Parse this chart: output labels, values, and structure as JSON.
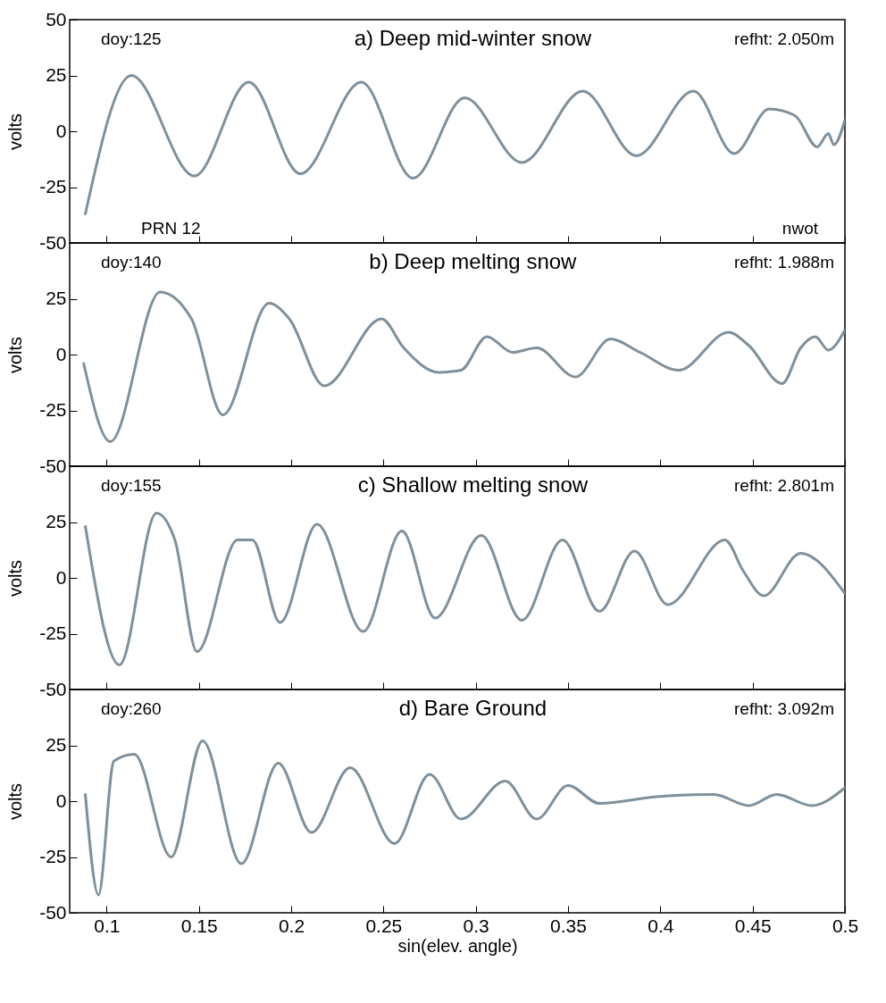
{
  "chart_data": [
    {
      "type": "line",
      "title": "a) Deep mid-winter snow",
      "ylabel": "volts",
      "annotations": [
        "doy:125",
        "refht: 2.050m",
        "PRN 12",
        "nwot"
      ],
      "xlim": [
        0.08,
        0.5
      ],
      "xticks": [
        0.1,
        0.15,
        0.2,
        0.25,
        0.3,
        0.35,
        0.4,
        0.45,
        0.5
      ],
      "ylim": [
        -50,
        50
      ],
      "yticks": [
        -50,
        -25,
        0,
        25,
        50
      ],
      "tick_labels": "y",
      "grid": false,
      "series": [
        {
          "color": "#7f909c",
          "x": [
            0.0885,
            0.1134,
            0.1476,
            0.177,
            0.205,
            0.238,
            0.266,
            0.294,
            0.325,
            0.358,
            0.387,
            0.418,
            0.44,
            0.459,
            0.473,
            0.485,
            0.491,
            0.494,
            0.5
          ],
          "values": [
            -37,
            25,
            -20,
            22,
            -19,
            22,
            -21,
            15,
            -14,
            18,
            -11,
            18,
            -10,
            10,
            7,
            -7,
            -1,
            -6,
            5
          ]
        }
      ]
    },
    {
      "type": "line",
      "title": "b) Deep melting snow",
      "ylabel": "volts",
      "annotations": [
        "doy:140",
        "refht: 1.988m"
      ],
      "xlim": [
        0.08,
        0.5
      ],
      "xticks": [
        0.1,
        0.15,
        0.2,
        0.25,
        0.3,
        0.35,
        0.4,
        0.45,
        0.5
      ],
      "ylim": [
        -50,
        50
      ],
      "yticks": [
        -50,
        -25,
        0,
        25
      ],
      "tick_labels": "y",
      "grid": false,
      "series": [
        {
          "color": "#7f909c",
          "x": [
            0.0876,
            0.102,
            0.129,
            0.146,
            0.163,
            0.188,
            0.199,
            0.218,
            0.249,
            0.261,
            0.28,
            0.292,
            0.306,
            0.32,
            0.333,
            0.354,
            0.373,
            0.389,
            0.41,
            0.437,
            0.448,
            0.466,
            0.476,
            0.484,
            0.491,
            0.5
          ],
          "values": [
            -4,
            -39,
            28,
            16,
            -27,
            23,
            16,
            -14,
            16,
            3,
            -8,
            -7,
            8,
            1,
            3,
            -10,
            7,
            1,
            -7,
            10,
            4,
            -13,
            3,
            8,
            2,
            11
          ]
        }
      ]
    },
    {
      "type": "line",
      "title": "c) Shallow melting snow",
      "ylabel": "volts",
      "annotations": [
        "doy:155",
        "refht: 2.801m"
      ],
      "xlim": [
        0.08,
        0.5
      ],
      "xticks": [
        0.1,
        0.15,
        0.2,
        0.25,
        0.3,
        0.35,
        0.4,
        0.45,
        0.5
      ],
      "ylim": [
        -50,
        50
      ],
      "yticks": [
        -50,
        -25,
        0,
        25
      ],
      "tick_labels": "y",
      "grid": false,
      "series": [
        {
          "color": "#7f909c",
          "x": [
            0.0885,
            0.107,
            0.127,
            0.137,
            0.149,
            0.171,
            0.179,
            0.194,
            0.214,
            0.239,
            0.26,
            0.278,
            0.303,
            0.325,
            0.347,
            0.367,
            0.386,
            0.404,
            0.435,
            0.445,
            0.456,
            0.476,
            0.5
          ],
          "values": [
            23,
            -39,
            29,
            17,
            -33,
            17,
            17,
            -20,
            24,
            -24,
            21,
            -18,
            19,
            -19,
            17,
            -15,
            12,
            -12,
            17,
            3,
            -8,
            11,
            -7
          ]
        }
      ]
    },
    {
      "type": "line",
      "title": "d) Bare Ground",
      "xlabel": "sin(elev. angle)",
      "ylabel": "volts",
      "annotations": [
        "doy:260",
        "refht: 3.092m"
      ],
      "xlim": [
        0.08,
        0.5
      ],
      "xticks": [
        0.1,
        0.15,
        0.2,
        0.25,
        0.3,
        0.35,
        0.4,
        0.45,
        0.5
      ],
      "ylim": [
        -50,
        50
      ],
      "yticks": [
        -50,
        -25,
        0,
        25
      ],
      "grid": false,
      "series": [
        {
          "color": "#7f909c",
          "x": [
            0.0885,
            0.0956,
            0.104,
            0.115,
            0.135,
            0.152,
            0.173,
            0.193,
            0.211,
            0.232,
            0.256,
            0.275,
            0.292,
            0.316,
            0.333,
            0.35,
            0.367,
            0.398,
            0.429,
            0.448,
            0.463,
            0.482,
            0.5
          ],
          "values": [
            3,
            -42,
            18,
            21,
            -25,
            27,
            -28,
            17,
            -14,
            15,
            -19,
            12,
            -8,
            9,
            -8,
            7,
            -1,
            2,
            3,
            -2,
            3,
            -2,
            6
          ]
        }
      ]
    }
  ]
}
